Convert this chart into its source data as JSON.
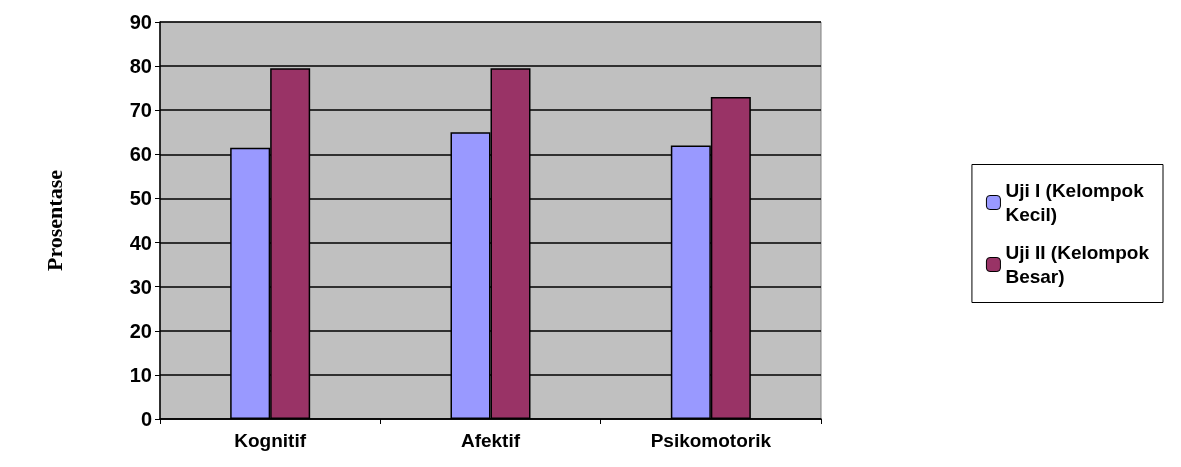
{
  "chart_data": {
    "type": "bar",
    "ylabel": "Prosentase",
    "categories": [
      "Kognitif",
      "Afektif",
      "Psikomotorik"
    ],
    "series": [
      {
        "name": "Uji I (Kelompok\nKecil)",
        "color": "#9999ff",
        "values": [
          61.5,
          65,
          62
        ]
      },
      {
        "name": "Uji II (Kelompok\nBesar)",
        "color": "#993366",
        "values": [
          79.5,
          79.5,
          73
        ]
      }
    ],
    "ylim": [
      0,
      90
    ],
    "yticks": [
      0,
      10,
      20,
      30,
      40,
      50,
      60,
      70,
      80,
      90
    ],
    "grid": "y",
    "legend": "right"
  }
}
